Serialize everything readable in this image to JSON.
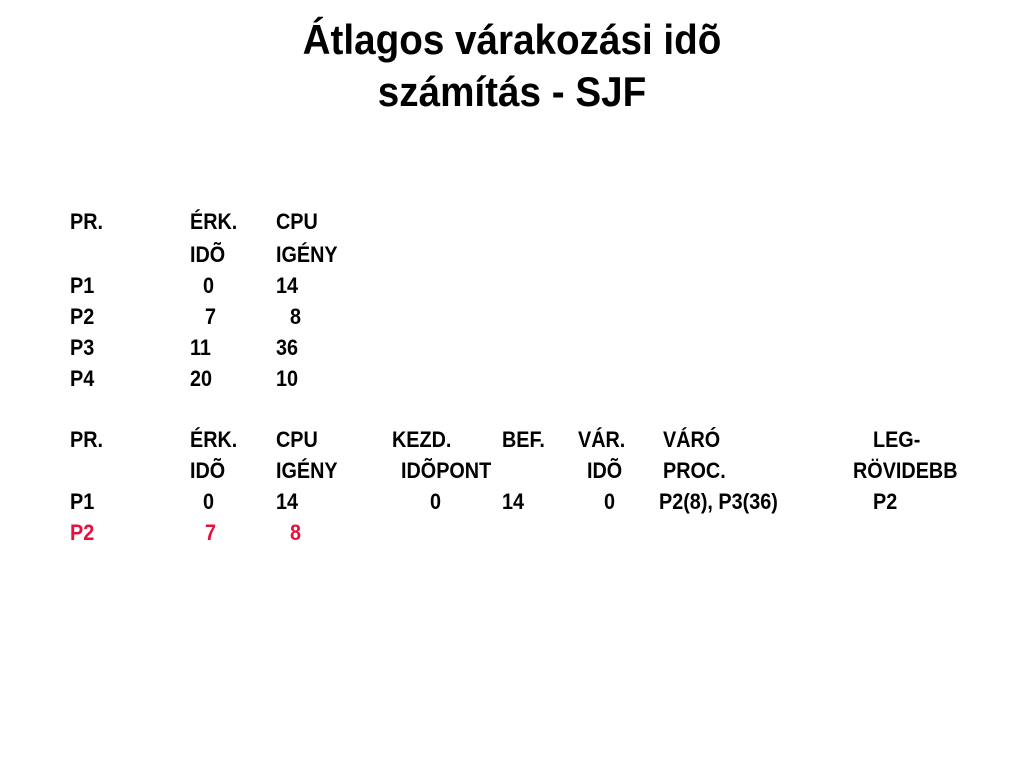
{
  "title": {
    "line1": "Átlagos várakozási idõ",
    "line2": "számítás - SJF"
  },
  "table1": {
    "header1": [
      "PR.",
      "ÉRK.",
      "CPU"
    ],
    "header2": [
      "",
      "IDÕ",
      "IGÉNY"
    ],
    "rows": [
      [
        "P1",
        "0",
        "14"
      ],
      [
        "P2",
        "7",
        "8"
      ],
      [
        "P3",
        "11",
        "36"
      ],
      [
        "P4",
        "20",
        "10"
      ]
    ]
  },
  "table2": {
    "header1": [
      "PR.",
      "ÉRK.",
      "CPU",
      "KEZD.",
      "BEF.",
      "VÁR.",
      "VÁRÓ",
      "LEG-"
    ],
    "header2": [
      "",
      "IDÕ",
      "IGÉNY",
      "IDÕPONT",
      "",
      "IDÕ",
      "PROC.",
      "RÖVIDEBB"
    ],
    "rows": [
      [
        "P1",
        "0",
        "14",
        "0",
        "14",
        "0",
        "P2(8), P3(36)",
        "P2"
      ],
      [
        "P2",
        "7",
        "8",
        "",
        "",
        "",
        "",
        ""
      ]
    ],
    "highlight_row": 1
  },
  "colors": {
    "text": "#000000",
    "highlight": "#e8103a"
  }
}
